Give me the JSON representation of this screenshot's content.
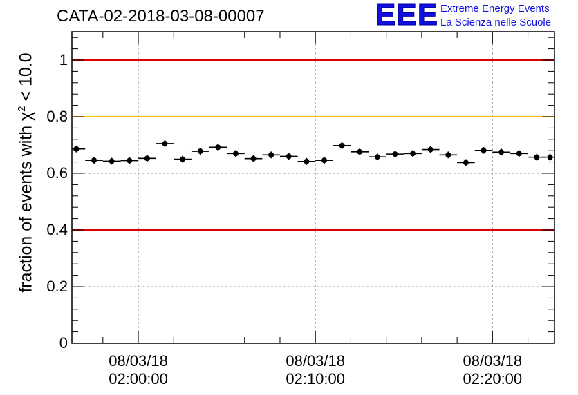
{
  "header": {
    "run_title": "CATA-02-2018-03-08-00007",
    "logo_mark": "EEE",
    "logo_line1": "Extreme Energy Events",
    "logo_line2": "La Scienza nelle Scuole"
  },
  "chart_data": {
    "type": "scatter",
    "title": "CATA-02-2018-03-08-00007",
    "ylabel_main": "fraction of events with χ",
    "ylabel_sup": "2",
    "ylabel_tail": " < 10.0",
    "xlabel": "",
    "xlim": [
      "2018-03-08 01:56:15",
      "2018-03-08 02:23:30"
    ],
    "ylim": [
      0,
      1.1
    ],
    "grid": true,
    "y_ticks": [
      {
        "value": 0,
        "label": "0"
      },
      {
        "value": 0.2,
        "label": "0.2"
      },
      {
        "value": 0.4,
        "label": "0.4"
      },
      {
        "value": 0.6,
        "label": "0.6"
      },
      {
        "value": 0.8,
        "label": "0.8"
      },
      {
        "value": 1,
        "label": "1"
      }
    ],
    "x_ticks": [
      {
        "value": "2018-03-08 02:00:00",
        "date": "08/03/18",
        "time": "02:00:00"
      },
      {
        "value": "2018-03-08 02:10:00",
        "date": "08/03/18",
        "time": "02:10:00"
      },
      {
        "value": "2018-03-08 02:20:00",
        "date": "08/03/18",
        "time": "02:20:00"
      }
    ],
    "reference_lines": [
      {
        "y": 1.0,
        "color": "#e00000"
      },
      {
        "y": 0.8,
        "color": "#ffc000"
      },
      {
        "y": 0.4,
        "color": "#e00000"
      }
    ],
    "bin_width_minutes": 1,
    "marker_color": "#000000",
    "series": [
      {
        "x": [
          "2018-03-08 01:56:30",
          "2018-03-08 01:57:30",
          "2018-03-08 01:58:30",
          "2018-03-08 01:59:30",
          "2018-03-08 02:00:30",
          "2018-03-08 02:01:30",
          "2018-03-08 02:02:30",
          "2018-03-08 02:03:30",
          "2018-03-08 02:04:30",
          "2018-03-08 02:05:30",
          "2018-03-08 02:06:30",
          "2018-03-08 02:07:30",
          "2018-03-08 02:08:30",
          "2018-03-08 02:09:30",
          "2018-03-08 02:10:30",
          "2018-03-08 02:11:30",
          "2018-03-08 02:12:30",
          "2018-03-08 02:13:30",
          "2018-03-08 02:14:30",
          "2018-03-08 02:15:30",
          "2018-03-08 02:16:30",
          "2018-03-08 02:17:30",
          "2018-03-08 02:18:30",
          "2018-03-08 02:19:30",
          "2018-03-08 02:20:30",
          "2018-03-08 02:21:30",
          "2018-03-08 02:22:30",
          "2018-03-08 02:23:15"
        ],
        "y": [
          0.686,
          0.646,
          0.643,
          0.645,
          0.653,
          0.705,
          0.65,
          0.678,
          0.692,
          0.67,
          0.652,
          0.665,
          0.66,
          0.642,
          0.646,
          0.698,
          0.676,
          0.658,
          0.668,
          0.67,
          0.684,
          0.665,
          0.638,
          0.681,
          0.675,
          0.67,
          0.657,
          0.657
        ],
        "y_err": 0.012
      }
    ]
  }
}
